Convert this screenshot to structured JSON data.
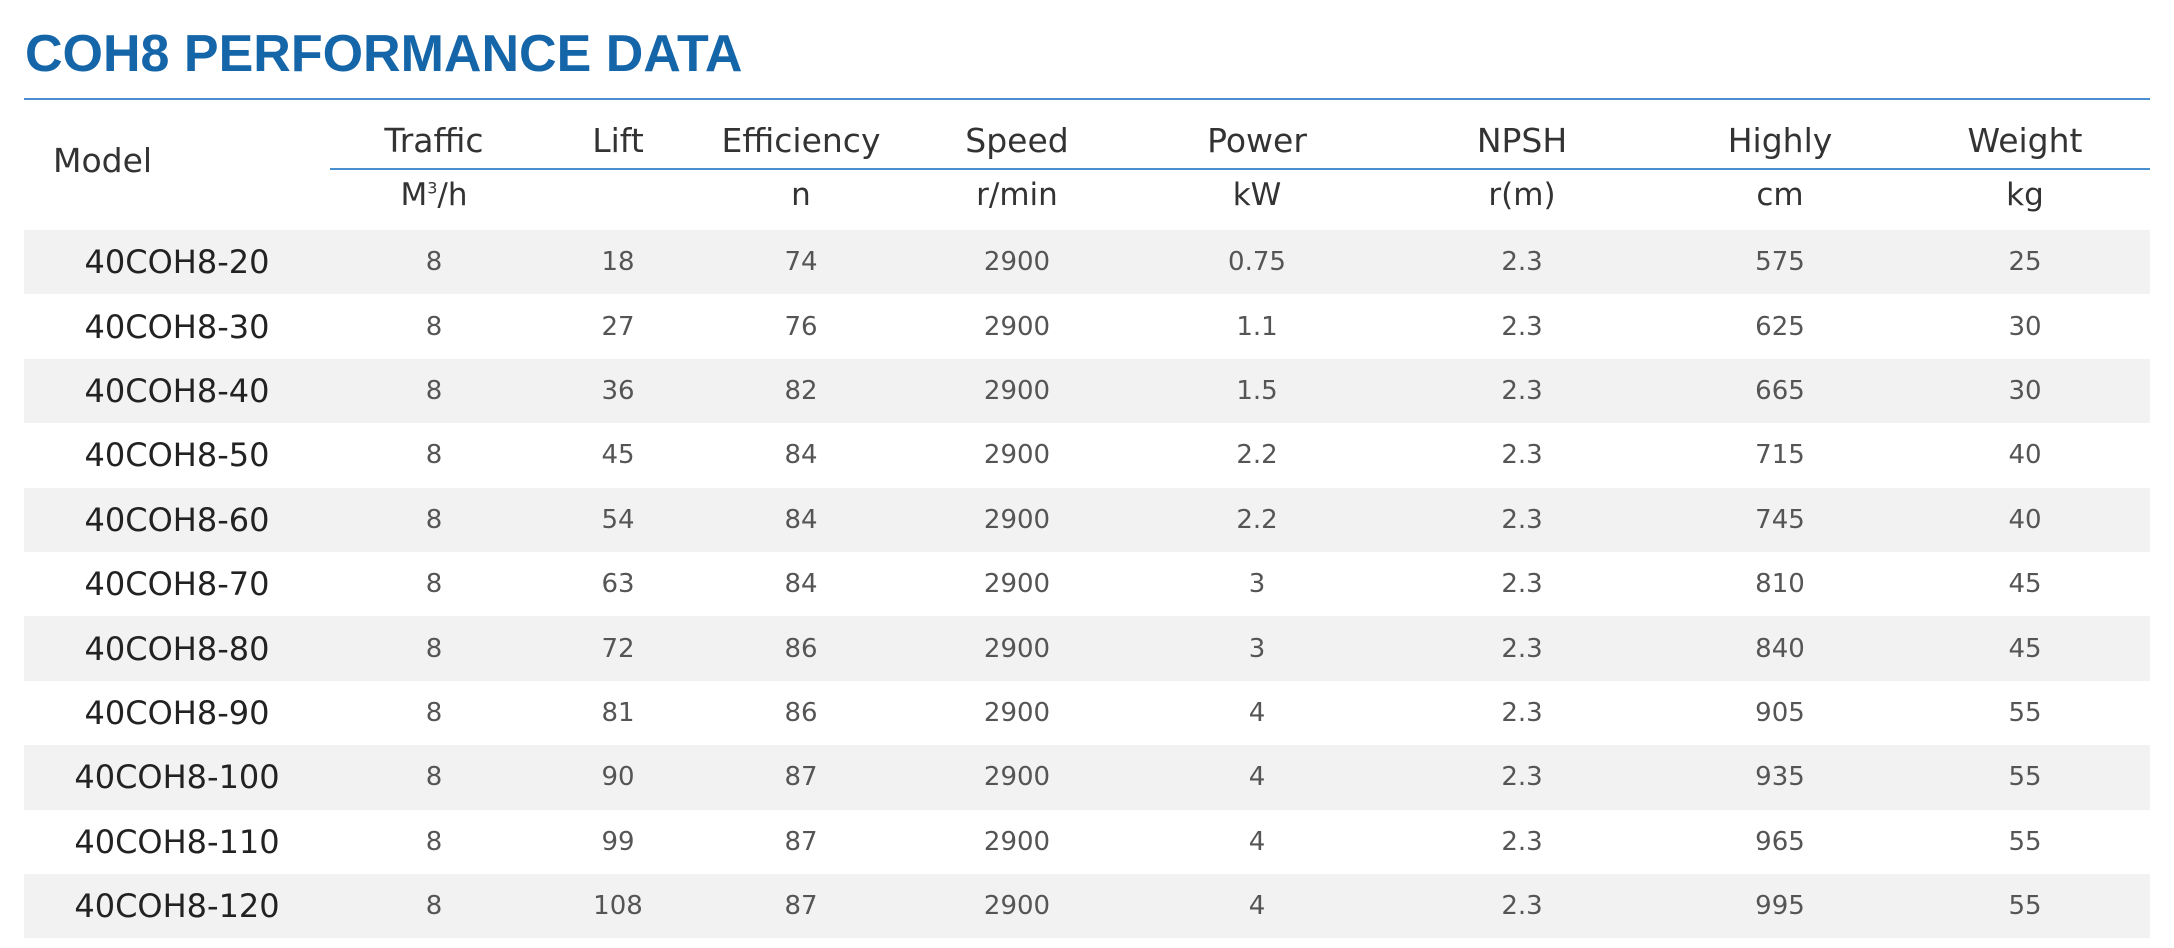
{
  "title": "COH8 PERFORMANCE DATA",
  "headers": {
    "model": "Model",
    "traffic": "Traffic",
    "lift": "Lift",
    "efficiency": "Efficiency",
    "speed": "Speed",
    "power": "Power",
    "npsh": "NPSH",
    "highly": "Highly",
    "weight": "Weight"
  },
  "units": {
    "traffic_base": "M",
    "traffic_exp": "3",
    "traffic_rest": "/h",
    "lift": "",
    "efficiency": "n",
    "speed": "r/min",
    "power": "kW",
    "npsh": "r(m)",
    "highly": "cm",
    "weight": "kg"
  },
  "rows": [
    [
      "40COH8-20",
      "8",
      "18",
      "74",
      "2900",
      "0.75",
      "2.3",
      "575",
      "25"
    ],
    [
      "40COH8-30",
      "8",
      "27",
      "76",
      "2900",
      "1.1",
      "2.3",
      "625",
      "30"
    ],
    [
      "40COH8-40",
      "8",
      "36",
      "82",
      "2900",
      "1.5",
      "2.3",
      "665",
      "30"
    ],
    [
      "40COH8-50",
      "8",
      "45",
      "84",
      "2900",
      "2.2",
      "2.3",
      "715",
      "40"
    ],
    [
      "40COH8-60",
      "8",
      "54",
      "84",
      "2900",
      "2.2",
      "2.3",
      "745",
      "40"
    ],
    [
      "40COH8-70",
      "8",
      "63",
      "84",
      "2900",
      "3",
      "2.3",
      "810",
      "45"
    ],
    [
      "40COH8-80",
      "8",
      "72",
      "86",
      "2900",
      "3",
      "2.3",
      "840",
      "45"
    ],
    [
      "40COH8-90",
      "8",
      "81",
      "86",
      "2900",
      "4",
      "2.3",
      "905",
      "55"
    ],
    [
      "40COH8-100",
      "8",
      "90",
      "87",
      "2900",
      "4",
      "2.3",
      "935",
      "55"
    ],
    [
      "40COH8-110",
      "8",
      "99",
      "87",
      "2900",
      "4",
      "2.3",
      "965",
      "55"
    ],
    [
      "40COH8-120",
      "8",
      "108",
      "87",
      "2900",
      "4",
      "2.3",
      "995",
      "55"
    ]
  ],
  "colors": {
    "title": "#1565a9",
    "rule": "#4a8fcf",
    "stripe": "#f2f2f2"
  }
}
